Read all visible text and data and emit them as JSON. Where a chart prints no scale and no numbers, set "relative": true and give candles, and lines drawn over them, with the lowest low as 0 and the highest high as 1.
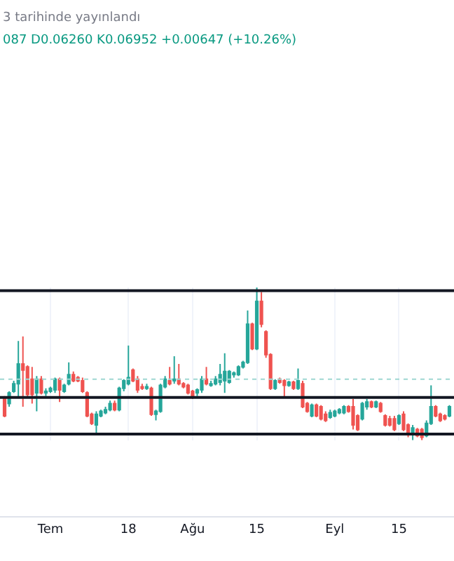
{
  "chart_data": {
    "type": "candlestick",
    "relative": true,
    "annotations": [
      "3 tarihinde yayınlandı",
      "087 D0.06260 K0.06952 +0.00647 (+10.26%)"
    ],
    "x": [
      "--06-21",
      "--06-22",
      "--06-23",
      "--06-24",
      "--06-25",
      "--06-26",
      "--06-27",
      "--06-28",
      "--06-29",
      "--06-30",
      "--07-01",
      "--07-02",
      "--07-03",
      "--07-04",
      "--07-05",
      "--07-06",
      "--07-07",
      "--07-08",
      "--07-09",
      "--07-10",
      "--07-11",
      "--07-12",
      "--07-13",
      "--07-14",
      "--07-15",
      "--07-16",
      "--07-17",
      "--07-18",
      "--07-19",
      "--07-20",
      "--07-21",
      "--07-22",
      "--07-23",
      "--07-24",
      "--07-25",
      "--07-26",
      "--07-27",
      "--07-28",
      "--07-29",
      "--07-30",
      "--07-31",
      "--08-01",
      "--08-02",
      "--08-03",
      "--08-04",
      "--08-05",
      "--08-06",
      "--08-07",
      "--08-08",
      "--08-09",
      "--08-10",
      "--08-11",
      "--08-12",
      "--08-13",
      "--08-14",
      "--08-15",
      "--08-16",
      "--08-17",
      "--08-18",
      "--08-19",
      "--08-20",
      "--08-21",
      "--08-22",
      "--08-23",
      "--08-24",
      "--08-25",
      "--08-26",
      "--08-27",
      "--08-28",
      "--08-29",
      "--08-30",
      "--08-31",
      "--09-01",
      "--09-02",
      "--09-03",
      "--09-04",
      "--09-05",
      "--09-06",
      "--09-07",
      "--09-08",
      "--09-09",
      "--09-10",
      "--09-11",
      "--09-12",
      "--09-13",
      "--09-14",
      "--09-15",
      "--09-16",
      "--09-17",
      "--09-18",
      "--09-19",
      "--09-20",
      "--09-21",
      "--09-22",
      "--09-23",
      "--09-24",
      "--09-25",
      "--09-26"
    ],
    "ohlc": [
      [
        0.28,
        0.29,
        0.15,
        0.16
      ],
      [
        0.24,
        0.32,
        0.22,
        0.31
      ],
      [
        0.32,
        0.39,
        0.31,
        0.37
      ],
      [
        0.37,
        0.65,
        0.28,
        0.5
      ],
      [
        0.5,
        0.68,
        0.22,
        0.46
      ],
      [
        0.48,
        0.49,
        0.28,
        0.3
      ],
      [
        0.4,
        0.48,
        0.24,
        0.3
      ],
      [
        0.31,
        0.42,
        0.19,
        0.4
      ],
      [
        0.4,
        0.42,
        0.3,
        0.31
      ],
      [
        0.31,
        0.34,
        0.29,
        0.32
      ],
      [
        0.32,
        0.35,
        0.31,
        0.34
      ],
      [
        0.33,
        0.41,
        0.31,
        0.4
      ],
      [
        0.4,
        0.41,
        0.25,
        0.33
      ],
      [
        0.32,
        0.37,
        0.31,
        0.36
      ],
      [
        0.37,
        0.51,
        0.36,
        0.43
      ],
      [
        0.43,
        0.45,
        0.38,
        0.39
      ],
      [
        0.41,
        0.42,
        0.38,
        0.39
      ],
      [
        0.39,
        0.41,
        0.31,
        0.32
      ],
      [
        0.31,
        0.32,
        0.15,
        0.16
      ],
      [
        0.17,
        0.18,
        0.1,
        0.11
      ],
      [
        0.1,
        0.19,
        0.04,
        0.17
      ],
      [
        0.16,
        0.2,
        0.15,
        0.19
      ],
      [
        0.18,
        0.22,
        0.17,
        0.2
      ],
      [
        0.2,
        0.26,
        0.19,
        0.24
      ],
      [
        0.24,
        0.26,
        0.19,
        0.2
      ],
      [
        0.2,
        0.35,
        0.19,
        0.34
      ],
      [
        0.34,
        0.4,
        0.32,
        0.39
      ],
      [
        0.37,
        0.62,
        0.36,
        0.41
      ],
      [
        0.46,
        0.47,
        0.38,
        0.39
      ],
      [
        0.4,
        0.42,
        0.31,
        0.33
      ],
      [
        0.35,
        0.37,
        0.33,
        0.34
      ],
      [
        0.34,
        0.37,
        0.33,
        0.35
      ],
      [
        0.34,
        0.35,
        0.16,
        0.17
      ],
      [
        0.17,
        0.2,
        0.13,
        0.19
      ],
      [
        0.19,
        0.37,
        0.18,
        0.36
      ],
      [
        0.35,
        0.42,
        0.34,
        0.4
      ],
      [
        0.39,
        0.48,
        0.36,
        0.37
      ],
      [
        0.39,
        0.55,
        0.37,
        0.4
      ],
      [
        0.4,
        0.5,
        0.36,
        0.37
      ],
      [
        0.37,
        0.38,
        0.34,
        0.35
      ],
      [
        0.36,
        0.37,
        0.3,
        0.31
      ],
      [
        0.32,
        0.33,
        0.27,
        0.29
      ],
      [
        0.31,
        0.34,
        0.29,
        0.33
      ],
      [
        0.33,
        0.42,
        0.31,
        0.4
      ],
      [
        0.4,
        0.48,
        0.36,
        0.37
      ],
      [
        0.36,
        0.39,
        0.35,
        0.37
      ],
      [
        0.37,
        0.42,
        0.36,
        0.4
      ],
      [
        0.38,
        0.5,
        0.36,
        0.43
      ],
      [
        0.39,
        0.57,
        0.31,
        0.45
      ],
      [
        0.38,
        0.46,
        0.37,
        0.45
      ],
      [
        0.43,
        0.45,
        0.41,
        0.44
      ],
      [
        0.43,
        0.49,
        0.42,
        0.48
      ],
      [
        0.48,
        0.52,
        0.47,
        0.51
      ],
      [
        0.51,
        0.85,
        0.5,
        0.76
      ],
      [
        0.76,
        0.77,
        0.59,
        0.6
      ],
      [
        0.6,
        1.0,
        0.59,
        0.91
      ],
      [
        0.91,
        0.97,
        0.74,
        0.76
      ],
      [
        0.71,
        0.72,
        0.54,
        0.56
      ],
      [
        0.56,
        0.57,
        0.33,
        0.34
      ],
      [
        0.34,
        0.4,
        0.33,
        0.39
      ],
      [
        0.4,
        0.41,
        0.37,
        0.38
      ],
      [
        0.39,
        0.4,
        0.28,
        0.36
      ],
      [
        0.36,
        0.39,
        0.35,
        0.38
      ],
      [
        0.38,
        0.39,
        0.33,
        0.34
      ],
      [
        0.34,
        0.47,
        0.33,
        0.39
      ],
      [
        0.37,
        0.39,
        0.21,
        0.22
      ],
      [
        0.24,
        0.25,
        0.18,
        0.19
      ],
      [
        0.16,
        0.24,
        0.15,
        0.23
      ],
      [
        0.23,
        0.24,
        0.15,
        0.16
      ],
      [
        0.22,
        0.23,
        0.13,
        0.14
      ],
      [
        0.17,
        0.19,
        0.12,
        0.13
      ],
      [
        0.15,
        0.2,
        0.14,
        0.18
      ],
      [
        0.16,
        0.2,
        0.15,
        0.19
      ],
      [
        0.18,
        0.21,
        0.17,
        0.2
      ],
      [
        0.18,
        0.23,
        0.17,
        0.22
      ],
      [
        0.22,
        0.23,
        0.18,
        0.19
      ],
      [
        0.22,
        0.27,
        0.07,
        0.1
      ],
      [
        0.16,
        0.17,
        0.06,
        0.07
      ],
      [
        0.14,
        0.25,
        0.13,
        0.24
      ],
      [
        0.22,
        0.27,
        0.2,
        0.25
      ],
      [
        0.25,
        0.26,
        0.21,
        0.22
      ],
      [
        0.22,
        0.26,
        0.21,
        0.25
      ],
      [
        0.24,
        0.25,
        0.18,
        0.19
      ],
      [
        0.16,
        0.17,
        0.09,
        0.1
      ],
      [
        0.14,
        0.16,
        0.09,
        0.1
      ],
      [
        0.14,
        0.16,
        0.06,
        0.07
      ],
      [
        0.11,
        0.17,
        0.1,
        0.16
      ],
      [
        0.17,
        0.19,
        0.06,
        0.07
      ],
      [
        0.1,
        0.11,
        0.02,
        0.04
      ],
      [
        0.04,
        0.1,
        0.0,
        0.08
      ],
      [
        0.07,
        0.08,
        0.02,
        0.03
      ],
      [
        0.07,
        0.08,
        0.0,
        0.02
      ],
      [
        0.03,
        0.13,
        0.02,
        0.11
      ],
      [
        0.11,
        0.36,
        0.1,
        0.22
      ],
      [
        0.22,
        0.23,
        0.15,
        0.16
      ],
      [
        0.17,
        0.18,
        0.12,
        0.13
      ],
      [
        0.16,
        0.17,
        0.13,
        0.14
      ],
      [
        0.16,
        0.23,
        0.15,
        0.22
      ]
    ],
    "colors": [
      "#ef5350",
      "#26a69a",
      "#26a69a",
      "#26a69a",
      "#ef5350",
      "#ef5350",
      "#ef5350",
      "#26a69a",
      "#ef5350",
      "#26a69a",
      "#26a69a",
      "#26a69a",
      "#ef5350",
      "#26a69a",
      "#26a69a",
      "#ef5350",
      "#ef5350",
      "#ef5350",
      "#ef5350",
      "#ef5350",
      "#26a69a",
      "#26a69a",
      "#26a69a",
      "#26a69a",
      "#ef5350",
      "#26a69a",
      "#26a69a",
      "#26a69a",
      "#ef5350",
      "#ef5350",
      "#ef5350",
      "#26a69a",
      "#ef5350",
      "#26a69a",
      "#26a69a",
      "#26a69a",
      "#ef5350",
      "#26a69a",
      "#ef5350",
      "#ef5350",
      "#ef5350",
      "#ef5350",
      "#26a69a",
      "#26a69a",
      "#ef5350",
      "#26a69a",
      "#26a69a",
      "#26a69a",
      "#26a69a",
      "#26a69a",
      "#26a69a",
      "#26a69a",
      "#26a69a",
      "#26a69a",
      "#ef5350",
      "#26a69a",
      "#ef5350",
      "#ef5350",
      "#ef5350",
      "#26a69a",
      "#ef5350",
      "#ef5350",
      "#26a69a",
      "#ef5350",
      "#26a69a",
      "#ef5350",
      "#ef5350",
      "#26a69a",
      "#ef5350",
      "#ef5350",
      "#ef5350",
      "#26a69a",
      "#26a69a",
      "#26a69a",
      "#26a69a",
      "#ef5350",
      "#ef5350",
      "#ef5350",
      "#26a69a",
      "#26a69a",
      "#ef5350",
      "#26a69a",
      "#ef5350",
      "#ef5350",
      "#ef5350",
      "#ef5350",
      "#26a69a",
      "#ef5350",
      "#ef5350",
      "#26a69a",
      "#ef5350",
      "#ef5350",
      "#26a69a",
      "#26a69a",
      "#ef5350",
      "#ef5350",
      "#ef5350",
      "#26a69a"
    ],
    "xlim": [
      "--06-20",
      "--09-27"
    ],
    "xticks": [
      {
        "value": "--07-01",
        "label": "Tem"
      },
      {
        "value": "--07-18",
        "label": "18"
      },
      {
        "value": "--08-01",
        "label": "Ağu"
      },
      {
        "value": "--08-15",
        "label": "15"
      },
      {
        "value": "--09-01",
        "label": "Eyl"
      },
      {
        "value": "--09-15",
        "label": "15"
      }
    ],
    "ref_lines": [
      {
        "axis": "y",
        "value": 0.98,
        "color": "#131722"
      },
      {
        "axis": "y",
        "value": 0.28,
        "color": "#131722"
      },
      {
        "axis": "y",
        "value": 0.04,
        "color": "#131722"
      },
      {
        "axis": "y",
        "value": 0.4,
        "color": "#9fd8d2",
        "line_style": "dotted"
      }
    ],
    "grid": "x"
  }
}
